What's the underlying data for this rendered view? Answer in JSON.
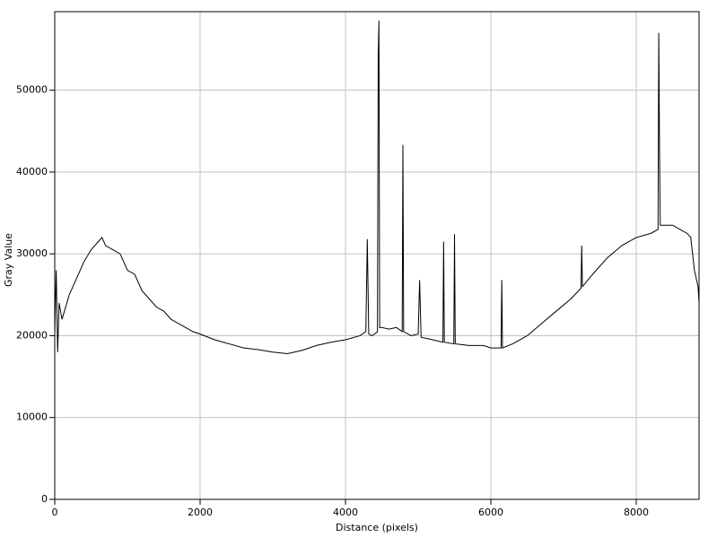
{
  "chart_data": {
    "type": "line",
    "x_label": "Distance (pixels)",
    "y_label": "Gray Value",
    "xlim": [
      0,
      8864
    ],
    "ylim": [
      0,
      59600
    ],
    "xticks": [
      0,
      2000,
      4000,
      6000,
      8000
    ],
    "yticks": [
      0,
      10000,
      20000,
      30000,
      40000,
      50000
    ],
    "grid": true,
    "series": [
      {
        "color": "#000000",
        "x": [
          0,
          20,
          40,
          60,
          100,
          200,
          300,
          400,
          500,
          600,
          650,
          700,
          800,
          900,
          1000,
          1100,
          1200,
          1300,
          1400,
          1500,
          1600,
          1700,
          1800,
          1900,
          2000,
          2200,
          2400,
          2600,
          2800,
          3000,
          3200,
          3400,
          3600,
          3800,
          4000,
          4200,
          4280,
          4300,
          4320,
          4360,
          4400,
          4440,
          4450,
          4460,
          4470,
          4500,
          4600,
          4700,
          4780,
          4790,
          4800,
          4900,
          5000,
          5020,
          5040,
          5200,
          5340,
          5350,
          5360,
          5490,
          5500,
          5510,
          5700,
          5900,
          6000,
          6140,
          6150,
          6160,
          6300,
          6500,
          6700,
          6900,
          7100,
          7240,
          7250,
          7260,
          7400,
          7600,
          7800,
          8000,
          8200,
          8300,
          8310,
          8320,
          8330,
          8500,
          8600,
          8700,
          8750,
          8800,
          8850,
          8864
        ],
        "values": [
          20000,
          28000,
          18000,
          24000,
          22000,
          25000,
          27000,
          29000,
          30500,
          31500,
          32000,
          31000,
          30500,
          30000,
          28000,
          27500,
          25500,
          24500,
          23500,
          23000,
          22000,
          21500,
          21000,
          20500,
          20200,
          19500,
          19000,
          18500,
          18300,
          18000,
          17800,
          18200,
          18800,
          19200,
          19500,
          20000,
          20500,
          31800,
          20200,
          20000,
          20200,
          20500,
          54000,
          58500,
          21000,
          21000,
          20800,
          21000,
          20500,
          43300,
          20500,
          20000,
          20200,
          26800,
          19800,
          19500,
          19200,
          31500,
          19200,
          19000,
          32400,
          19000,
          18800,
          18800,
          18500,
          18500,
          26800,
          18500,
          19000,
          20000,
          21500,
          23000,
          24500,
          25800,
          31000,
          26000,
          27500,
          29500,
          31000,
          32000,
          32500,
          33000,
          57000,
          43000,
          33500,
          33500,
          33000,
          32500,
          32000,
          28000,
          26000,
          24000
        ]
      }
    ]
  }
}
